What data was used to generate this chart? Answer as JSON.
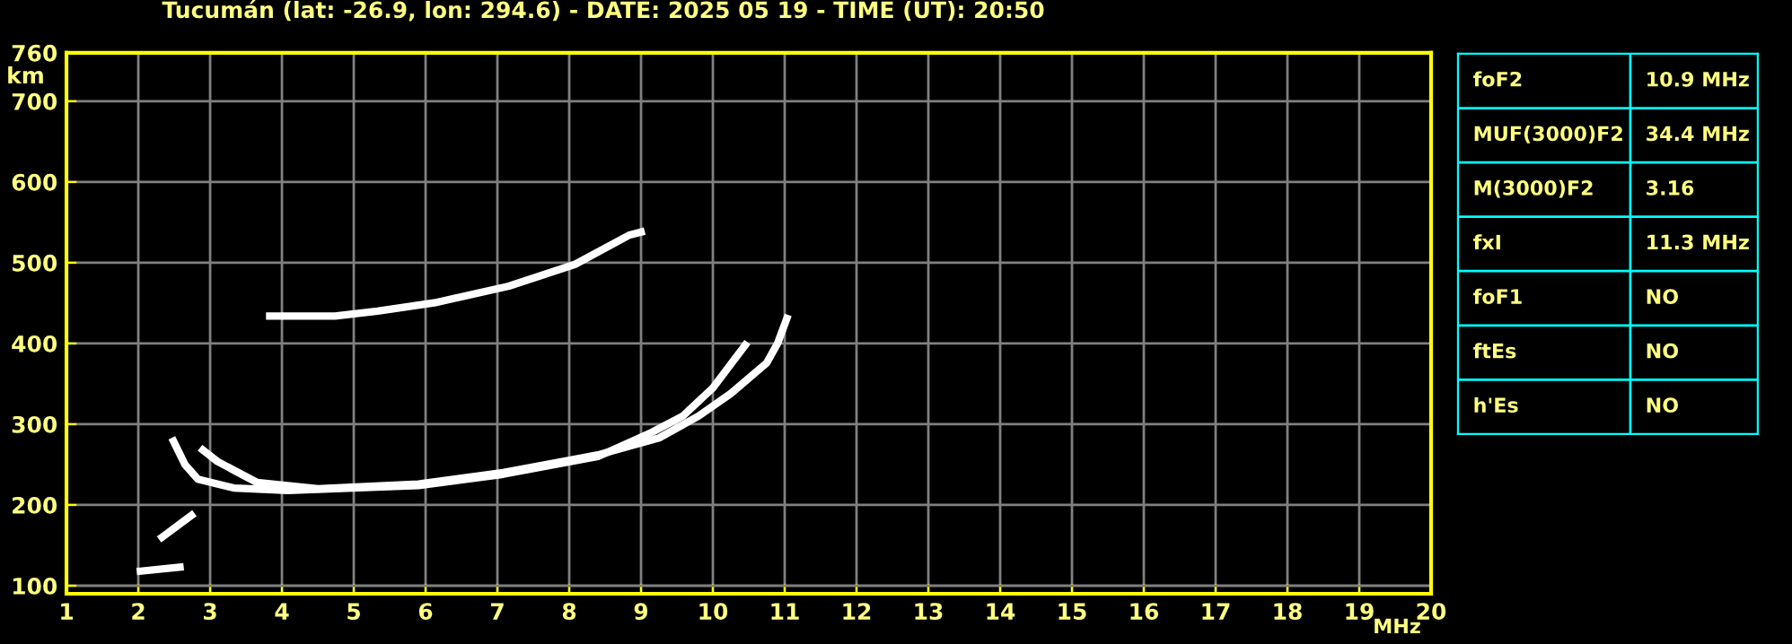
{
  "chart_data": [
    {
      "type": "line",
      "title": "Tucumán (lat: -26.9, lon: 294.6) - DATE: 2025 05 19 - TIME (UT): 20:50",
      "xlabel": "MHz",
      "ylabel": "km",
      "xlim": [
        1,
        20
      ],
      "xticks": [
        1,
        2,
        3,
        4,
        5,
        6,
        7,
        8,
        9,
        10,
        11,
        12,
        13,
        14,
        15,
        16,
        17,
        18,
        19,
        20
      ],
      "ylim": [
        90,
        760
      ],
      "yticks": [
        100,
        200,
        300,
        400,
        500,
        600,
        700,
        760
      ],
      "grid": true,
      "marker": "none",
      "line_style": "solid",
      "series": [
        {
          "color": "#ffffff",
          "x": [
            2.49,
            2.65,
            2.83,
            3.33,
            4.08,
            5.9,
            7.08,
            8.4,
            9.15,
            9.58,
            10.0,
            10.45
          ],
          "values": [
            279,
            250,
            232,
            221,
            218,
            224,
            238,
            260,
            290,
            310,
            345,
            398
          ]
        },
        {
          "color": "#ffffff",
          "x": [
            2.9,
            3.1,
            3.33,
            3.65,
            4.5,
            5.9,
            7.08,
            8.4,
            9.25,
            9.8,
            10.25,
            10.75,
            10.9,
            11.03
          ],
          "values": [
            268,
            254,
            243,
            228,
            220,
            226,
            240,
            262,
            283,
            310,
            338,
            376,
            400,
            431
          ]
        },
        {
          "color": "#ffffff",
          "x": [
            3.83,
            4.74,
            5.33,
            6.16,
            7.16,
            8.08,
            8.83,
            9.0
          ],
          "values": [
            434,
            434,
            440,
            451,
            471,
            498,
            534,
            538
          ]
        },
        {
          "color": "#ffffff",
          "x": [
            2.03,
            2.58
          ],
          "values": [
            118,
            123
          ]
        },
        {
          "color": "#ffffff",
          "x": [
            2.33,
            2.74
          ],
          "values": [
            160,
            187
          ]
        }
      ]
    },
    {
      "type": "other",
      "annotations": [
        "foF2",
        "10.9 MHz",
        "MUF(3000)F2",
        "34.4 MHz",
        "M(3000)F2",
        "3.16",
        "fxI",
        "11.3 MHz",
        "foF1",
        "NO",
        "ftEs",
        "NO",
        "h'Es",
        "NO"
      ]
    }
  ]
}
